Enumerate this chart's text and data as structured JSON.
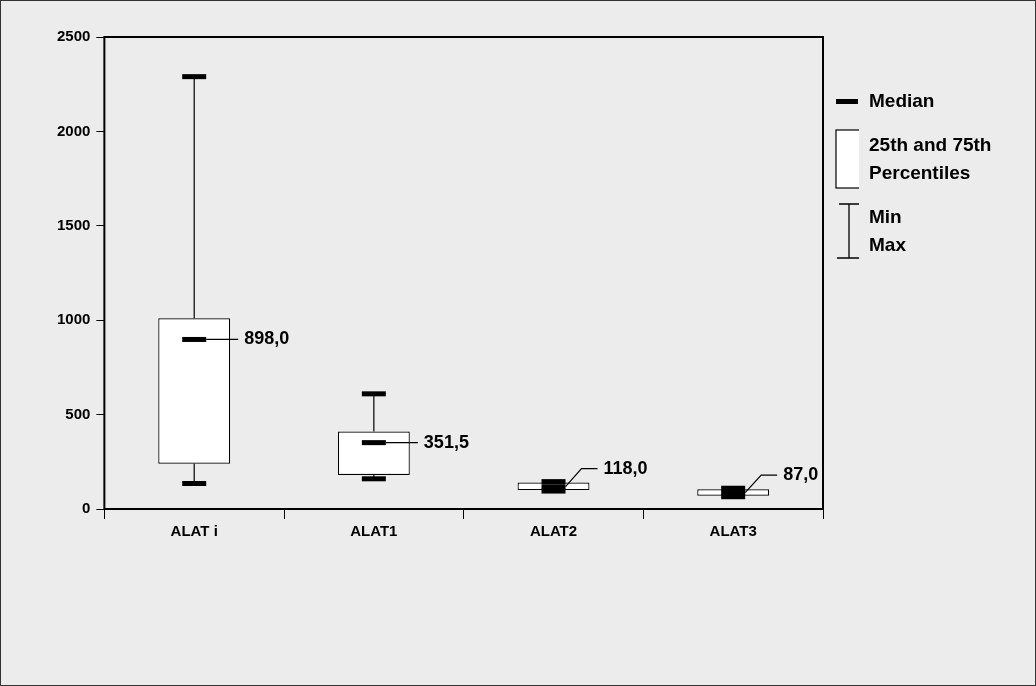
{
  "chart_data": {
    "type": "box",
    "categories": [
      "ALAT i",
      "ALAT1",
      "ALAT2",
      "ALAT3"
    ],
    "boxes": [
      {
        "low": 135,
        "q1": 240,
        "median": 898,
        "q3": 1010,
        "high": 2290
      },
      {
        "low": 160,
        "q1": 180,
        "median": 351.5,
        "q3": 410,
        "high": 610
      },
      {
        "low": 95,
        "q1": 100,
        "median": 118,
        "q3": 140,
        "high": 145
      },
      {
        "low": 65,
        "q1": 70,
        "median": 87,
        "q3": 105,
        "high": 110
      }
    ],
    "value_labels": [
      "898,0",
      "351,5",
      "118,0",
      "87,0"
    ],
    "ylim": [
      0,
      2500
    ],
    "yticks": [
      0,
      500,
      1000,
      1500,
      2000,
      2500
    ],
    "grid": false,
    "annotations": [
      "Median",
      "25th and 75th Percentiles",
      "Min",
      "Max"
    ]
  }
}
